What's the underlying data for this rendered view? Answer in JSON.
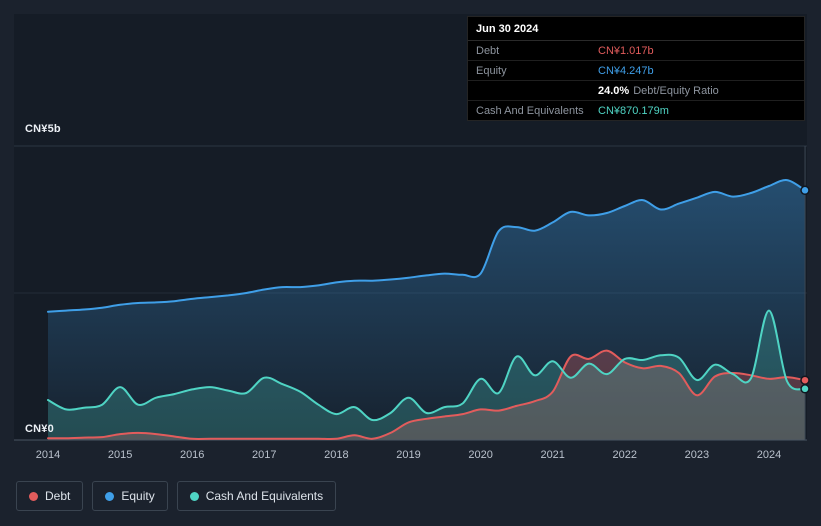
{
  "tooltip": {
    "date": "Jun 30 2024",
    "debt_label": "Debt",
    "debt_value": "CN¥1.017b",
    "equity_label": "Equity",
    "equity_value": "CN¥4.247b",
    "ratio_value": "24.0%",
    "ratio_label": "Debt/Equity Ratio",
    "cash_label": "Cash And Equivalents",
    "cash_value": "CN¥870.179m"
  },
  "colors": {
    "debt": "#e25c5c",
    "equity": "#3f9fe8",
    "cash": "#4fd4c4",
    "background": "#1b222d",
    "plot_background": "#151c26"
  },
  "legend": {
    "items": [
      {
        "label": "Debt",
        "color": "#e25c5c"
      },
      {
        "label": "Equity",
        "color": "#3f9fe8"
      },
      {
        "label": "Cash And Equivalents",
        "color": "#4fd4c4"
      }
    ]
  },
  "chart_data": {
    "type": "area",
    "unit": "CN¥ billions",
    "ylabel_top": "CN¥5b",
    "ylabel_bottom": "CN¥0",
    "ylim": [
      0,
      5
    ],
    "y_gridlines": [
      2.5,
      5
    ],
    "legend_position": "bottom-left",
    "x_ticks": [
      2014,
      2015,
      2016,
      2017,
      2018,
      2019,
      2020,
      2021,
      2022,
      2023,
      2024
    ],
    "x_tick_labels": [
      "2014",
      "2015",
      "2016",
      "2017",
      "2018",
      "2019",
      "2020",
      "2021",
      "2022",
      "2023",
      "2024"
    ],
    "x": [
      2014,
      2014.25,
      2014.5,
      2014.75,
      2015,
      2015.25,
      2015.5,
      2015.75,
      2016,
      2016.25,
      2016.5,
      2016.75,
      2017,
      2017.25,
      2017.5,
      2017.75,
      2018,
      2018.25,
      2018.5,
      2018.75,
      2019,
      2019.25,
      2019.5,
      2019.75,
      2020,
      2020.25,
      2020.5,
      2020.75,
      2021,
      2021.25,
      2021.5,
      2021.75,
      2022,
      2022.25,
      2022.5,
      2022.75,
      2023,
      2023.25,
      2023.5,
      2023.75,
      2024,
      2024.25,
      2024.5
    ],
    "series": [
      {
        "name": "Equity",
        "color": "#3f9fe8",
        "fill": "url(#eqGrad)",
        "values": [
          2.18,
          2.2,
          2.22,
          2.25,
          2.3,
          2.33,
          2.34,
          2.36,
          2.4,
          2.43,
          2.46,
          2.5,
          2.56,
          2.6,
          2.6,
          2.63,
          2.68,
          2.71,
          2.71,
          2.73,
          2.76,
          2.8,
          2.83,
          2.81,
          2.83,
          3.55,
          3.62,
          3.56,
          3.7,
          3.88,
          3.82,
          3.86,
          3.98,
          4.08,
          3.92,
          4.02,
          4.12,
          4.22,
          4.14,
          4.2,
          4.32,
          4.42,
          4.247
        ]
      },
      {
        "name": "Debt",
        "color": "#e25c5c",
        "fill": "rgba(226,92,92,0.30)",
        "values": [
          0.03,
          0.03,
          0.04,
          0.05,
          0.1,
          0.12,
          0.1,
          0.06,
          0.02,
          0.02,
          0.02,
          0.02,
          0.02,
          0.02,
          0.02,
          0.02,
          0.02,
          0.08,
          0.02,
          0.12,
          0.3,
          0.36,
          0.4,
          0.44,
          0.52,
          0.5,
          0.58,
          0.66,
          0.82,
          1.42,
          1.38,
          1.52,
          1.32,
          1.22,
          1.26,
          1.14,
          0.76,
          1.08,
          1.14,
          1.1,
          1.04,
          1.07,
          1.017
        ]
      },
      {
        "name": "Cash And Equivalents",
        "color": "#4fd4c4",
        "fill": "rgba(79,212,196,0.24)",
        "values": [
          0.68,
          0.52,
          0.55,
          0.6,
          0.9,
          0.6,
          0.72,
          0.78,
          0.86,
          0.9,
          0.84,
          0.8,
          1.06,
          0.95,
          0.82,
          0.6,
          0.44,
          0.56,
          0.34,
          0.46,
          0.72,
          0.46,
          0.56,
          0.62,
          1.04,
          0.8,
          1.42,
          1.1,
          1.34,
          1.06,
          1.3,
          1.12,
          1.38,
          1.36,
          1.44,
          1.4,
          1.02,
          1.28,
          1.12,
          1.05,
          2.2,
          1.0,
          0.87
        ]
      }
    ]
  }
}
